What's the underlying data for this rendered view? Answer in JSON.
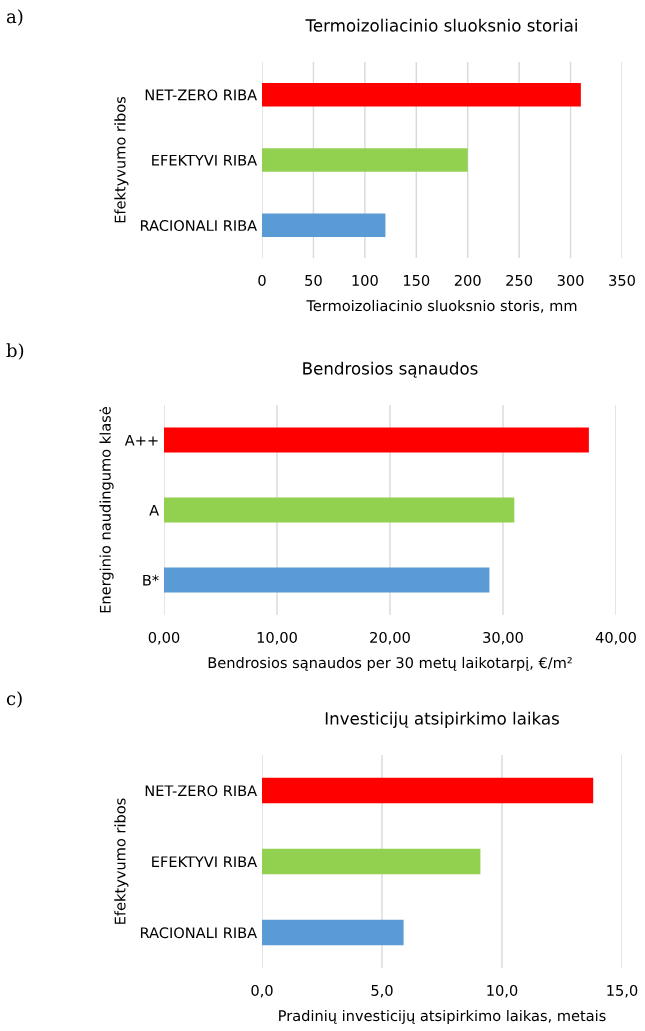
{
  "chart_data": [
    {
      "type": "bar",
      "orientation": "horizontal",
      "title": "Termoizoliacinio sluoksnio storiai",
      "xlabel": "Termoizoliacinio sluoksnio storis, mm",
      "ylabel": "Efektyvumo ribos",
      "annotations": [
        "a)"
      ],
      "categories": [
        "NET-ZERO RIBA",
        "EFEKTYVI RIBA",
        "RACIONALI RIBA"
      ],
      "values": [
        310,
        200,
        120
      ],
      "colors": [
        "#ff0000",
        "#92d050",
        "#5b9bd5"
      ],
      "xlim": [
        0,
        350
      ],
      "xticks": [
        0,
        50,
        100,
        150,
        200,
        250,
        300,
        350
      ],
      "grid": "x",
      "legend": false
    },
    {
      "type": "bar",
      "orientation": "horizontal",
      "title": "Bendrosios sąnaudos",
      "xlabel": "Bendrosios sąnaudos per 30 metų laikotarpį, €/m²",
      "ylabel": "Energinio naudingumo klasė",
      "annotations": [
        "b)"
      ],
      "categories": [
        "A++",
        "A",
        "B*"
      ],
      "values": [
        37.6,
        31.0,
        28.8
      ],
      "colors": [
        "#ff0000",
        "#92d050",
        "#5b9bd5"
      ],
      "xlim": [
        0,
        40
      ],
      "xticks": [
        {
          "value": 0,
          "label": "0,00"
        },
        {
          "value": 10,
          "label": "10,00"
        },
        {
          "value": 20,
          "label": "20,00"
        },
        {
          "value": 30,
          "label": "30,00"
        },
        {
          "value": 40,
          "label": "40,00"
        }
      ],
      "grid": "x",
      "legend": false
    },
    {
      "type": "bar",
      "orientation": "horizontal",
      "title": "Investicijų atsipirkimo laikas",
      "xlabel": "Pradinių investicijų atsipirkimo laikas, metais",
      "ylabel": "Efektyvumo ribos",
      "annotations": [
        "c)"
      ],
      "categories": [
        "NET-ZERO RIBA",
        "EFEKTYVI RIBA",
        "RACIONALI RIBA"
      ],
      "values": [
        13.8,
        9.1,
        5.9
      ],
      "colors": [
        "#ff0000",
        "#92d050",
        "#5b9bd5"
      ],
      "xlim": [
        0,
        15
      ],
      "xticks": [
        {
          "value": 0,
          "label": "0,0"
        },
        {
          "value": 5,
          "label": "5,0"
        },
        {
          "value": 10,
          "label": "10,0"
        },
        {
          "value": 15,
          "label": "15,0"
        }
      ],
      "grid": "x",
      "legend": false
    }
  ]
}
